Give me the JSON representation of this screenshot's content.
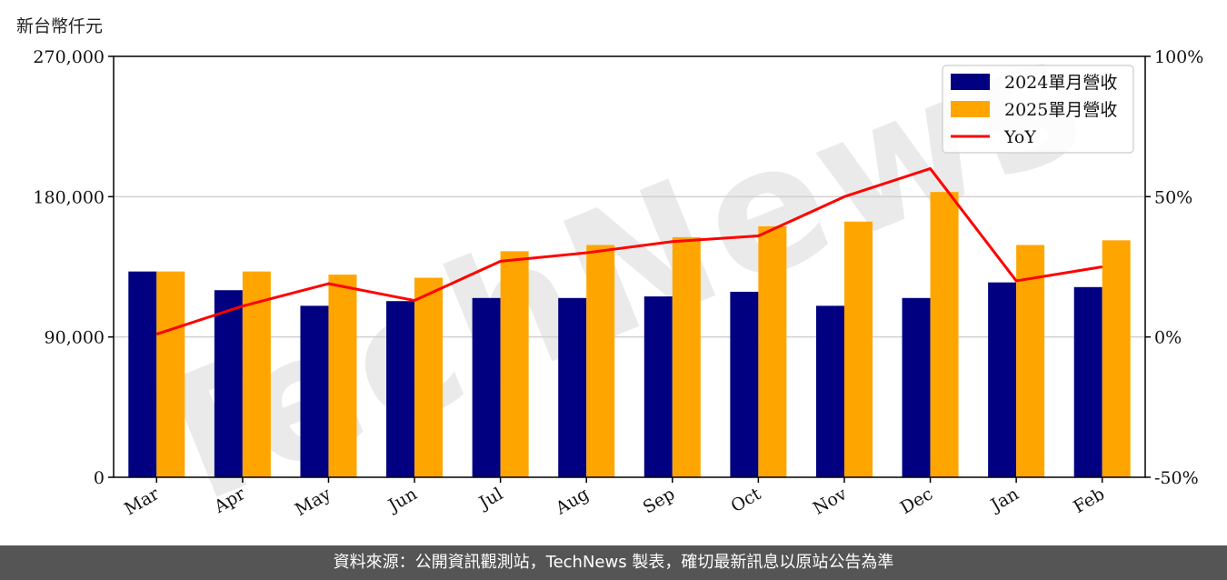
{
  "unit_label": "新台幣仟元",
  "footer_text": "資料來源：公開資訊觀測站，TechNews 製表，確切最新訊息以原站公告為準",
  "watermark": "TechNews",
  "colors": {
    "series_2024": "#000080",
    "series_2025": "#FFA500",
    "yoy": "#FF0000"
  },
  "chart_data": {
    "type": "bar",
    "categories": [
      "Mar",
      "Apr",
      "May",
      "Jun",
      "Jul",
      "Aug",
      "Sep",
      "Oct",
      "Nov",
      "Dec",
      "Jan",
      "Feb"
    ],
    "series": [
      {
        "name": "2024單月營收",
        "type": "bar",
        "axis": "left",
        "values": [
          132000,
          120000,
          110000,
          113000,
          115000,
          115000,
          116000,
          119000,
          110000,
          115000,
          125000,
          122000
        ]
      },
      {
        "name": "2025單月營收",
        "type": "bar",
        "axis": "left",
        "values": [
          132000,
          132000,
          130000,
          128000,
          145000,
          149000,
          154000,
          161000,
          164000,
          183000,
          149000,
          152000
        ]
      },
      {
        "name": "YoY",
        "type": "line",
        "axis": "right",
        "values": [
          1,
          11,
          19,
          13,
          27,
          30,
          34,
          36,
          50,
          60,
          20,
          25
        ]
      }
    ],
    "yaxis_left": {
      "ylim": [
        0,
        270000
      ],
      "ticks": [
        "0",
        "90,000",
        "180,000",
        "270,000"
      ]
    },
    "yaxis_right": {
      "ylim": [
        -50,
        100
      ],
      "ticks": [
        "-50%",
        "0%",
        "50%",
        "100%"
      ]
    },
    "grid": "horizontal",
    "legend": "top-right"
  }
}
